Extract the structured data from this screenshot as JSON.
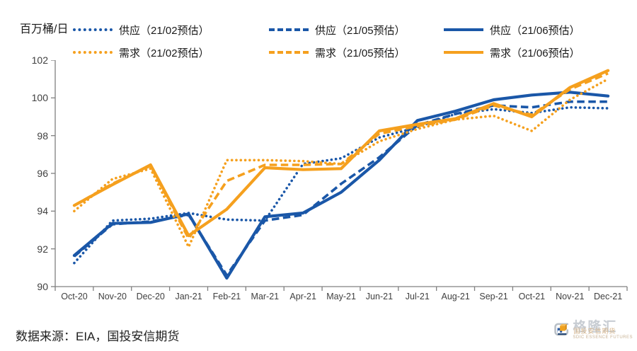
{
  "header": {
    "unit_label": "百万桶/日"
  },
  "footer": {
    "source_text": "数据来源：EIA，国投安信期货"
  },
  "logo": {
    "brand": "格隆汇",
    "overlay": "国投安信期货",
    "sub_brand": "SDIC ESSENCE FUTURES"
  },
  "colors": {
    "supply_blue": "#1A57A8",
    "demand_orange": "#F5A01E",
    "axis_gray": "#808080",
    "label_gray": "#404040"
  },
  "chart_data": {
    "type": "line",
    "title": "",
    "unit": "百万桶/日",
    "xlabel": "",
    "ylabel": "百万桶/日",
    "ylim": [
      90,
      102
    ],
    "y_ticks": [
      102,
      100,
      98,
      96,
      94,
      92,
      90
    ],
    "grid": false,
    "legend_position": "top",
    "categories": [
      "Oct-20",
      "Nov-20",
      "Dec-20",
      "Jan-21",
      "Feb-21",
      "Mar-21",
      "Apr-21",
      "May-21",
      "Jun-21",
      "Jul-21",
      "Aug-21",
      "Sep-21",
      "Oct-21",
      "Nov-21",
      "Dec-21"
    ],
    "series": [
      {
        "key": "supply-2102",
        "name": "供应（21/02预估）",
        "color": "#1A57A8",
        "line_style": "dotted",
        "values": [
          91.25,
          93.5,
          93.6,
          93.9,
          93.55,
          93.5,
          96.5,
          96.8,
          97.9,
          98.45,
          99.15,
          99.4,
          99.2,
          99.5,
          99.45
        ]
      },
      {
        "key": "supply-2105",
        "name": "供应（21/05预估）",
        "color": "#1A57A8",
        "line_style": "dashed",
        "values": [
          91.6,
          93.3,
          93.45,
          93.8,
          90.6,
          93.5,
          93.8,
          95.45,
          96.85,
          98.55,
          99.15,
          99.6,
          99.5,
          99.8,
          99.8
        ]
      },
      {
        "key": "supply-2106",
        "name": "供应（21/06预估）",
        "color": "#1A57A8",
        "line_style": "solid",
        "values": [
          91.65,
          93.35,
          93.4,
          93.85,
          90.45,
          93.7,
          93.9,
          95.0,
          96.7,
          98.8,
          99.3,
          99.9,
          100.15,
          100.3,
          100.1
        ]
      },
      {
        "key": "demand-2102",
        "name": "需求（21/02预估）",
        "color": "#F5A01E",
        "line_style": "dotted",
        "values": [
          94.0,
          95.7,
          96.25,
          92.1,
          96.7,
          96.7,
          96.65,
          96.5,
          97.7,
          98.35,
          98.85,
          99.05,
          98.25,
          99.9,
          101.0
        ]
      },
      {
        "key": "demand-2105",
        "name": "需求（21/05预估）",
        "color": "#F5A01E",
        "line_style": "dashed",
        "values": [
          94.3,
          95.45,
          96.4,
          92.55,
          95.6,
          96.45,
          96.45,
          96.5,
          98.1,
          98.5,
          98.85,
          99.6,
          99.1,
          100.45,
          101.3
        ]
      },
      {
        "key": "demand-2106",
        "name": "需求（21/06预估）",
        "color": "#F5A01E",
        "line_style": "solid",
        "values": [
          94.3,
          95.4,
          96.45,
          92.7,
          94.1,
          96.3,
          96.2,
          96.25,
          98.25,
          98.6,
          98.9,
          99.7,
          99.0,
          100.55,
          101.45
        ]
      }
    ]
  }
}
